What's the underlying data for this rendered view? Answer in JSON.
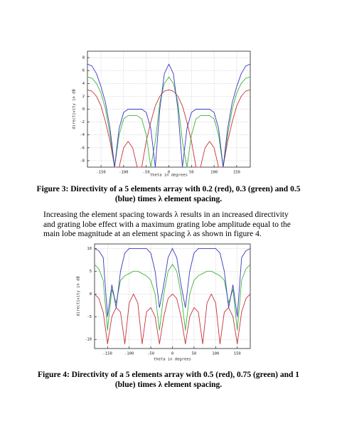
{
  "chart_data": [
    {
      "type": "line",
      "x_label": "theta in degrees",
      "y_label": "directivity in dB",
      "xlim": [
        -180,
        180
      ],
      "xticks": [
        -150,
        -100,
        -50,
        0,
        50,
        100,
        150
      ],
      "ylim": [
        -9,
        9
      ],
      "yticks": [
        -8,
        -6,
        -4,
        -2,
        0,
        2,
        4,
        6,
        8
      ],
      "grid": true,
      "x": [
        -180,
        -170,
        -160,
        -150,
        -140,
        -130,
        -120,
        -110,
        -100,
        -90,
        -80,
        -70,
        -60,
        -50,
        -40,
        -30,
        -20,
        -10,
        0,
        10,
        20,
        30,
        40,
        50,
        60,
        70,
        80,
        90,
        100,
        110,
        120,
        130,
        140,
        150,
        160,
        170,
        180
      ],
      "series": [
        {
          "color": "#c8303c",
          "values": [
            3,
            2.8,
            2,
            0.5,
            -2,
            -5,
            -9,
            -9,
            -6,
            -5,
            -6,
            -9,
            -9,
            -5,
            -2,
            0.5,
            2,
            2.8,
            3,
            2.8,
            2,
            0.5,
            -2,
            -5,
            -9,
            -9,
            -6,
            -5,
            -6,
            -9,
            -9,
            -5,
            -2,
            0.5,
            2,
            2.8,
            3
          ]
        },
        {
          "color": "#3cb43c",
          "values": [
            5,
            4.8,
            4,
            2.5,
            0,
            -4,
            -9,
            -4,
            -1.5,
            -1,
            -1,
            -1,
            -1.5,
            -4,
            -9,
            -5,
            1,
            4,
            5,
            4,
            1,
            -5,
            -9,
            -4,
            -1.5,
            -1,
            -1,
            -1,
            -1.5,
            -4,
            -9,
            -4,
            0,
            2.5,
            4,
            4.8,
            5
          ]
        },
        {
          "color": "#3838c0",
          "values": [
            7,
            6.7,
            5.5,
            3.5,
            1,
            -3,
            -9,
            -3,
            -0.5,
            0,
            0,
            0,
            0,
            -0.5,
            -3,
            -9,
            0,
            5.5,
            7,
            5.5,
            0,
            -9,
            -3,
            -0.5,
            0,
            0,
            0,
            0,
            -0.5,
            -3,
            -9,
            -3,
            1,
            3.5,
            5.5,
            6.7,
            7
          ]
        }
      ]
    },
    {
      "type": "line",
      "x_label": "theta in degrees",
      "y_label": "directivity in dB",
      "xlim": [
        -180,
        180
      ],
      "xticks": [
        -150,
        -100,
        -50,
        0,
        50,
        100,
        150
      ],
      "ylim": [
        -12,
        11
      ],
      "yticks": [
        -10,
        -5,
        0,
        5,
        10
      ],
      "grid": true,
      "x": [
        -180,
        -170,
        -160,
        -150,
        -140,
        -130,
        -120,
        -110,
        -100,
        -90,
        -80,
        -70,
        -60,
        -50,
        -40,
        -30,
        -20,
        -10,
        0,
        10,
        20,
        30,
        40,
        50,
        60,
        70,
        80,
        90,
        100,
        110,
        120,
        130,
        140,
        150,
        160,
        170,
        180
      ],
      "series": [
        {
          "color": "#c8303c",
          "values": [
            0,
            -1,
            -4,
            -11,
            -5,
            -3,
            -4,
            -11,
            -2,
            0,
            -2,
            -11,
            -4,
            -3,
            -5,
            -11,
            -5,
            -1,
            0,
            -1,
            -5,
            -11,
            -5,
            -3,
            -4,
            -11,
            -2,
            0,
            -2,
            -11,
            -4,
            -3,
            -5,
            -11,
            -4,
            -1,
            0
          ]
        },
        {
          "color": "#3cb43c",
          "values": [
            6.5,
            5.5,
            3,
            -8,
            1,
            -2,
            3,
            4,
            4.5,
            5,
            5,
            4.5,
            4,
            3,
            0,
            -8,
            0,
            5,
            6.5,
            5,
            0,
            -8,
            0,
            3,
            4,
            4.5,
            5,
            5,
            4.5,
            4,
            3,
            -2,
            1,
            -8,
            3,
            5.5,
            6.5
          ]
        },
        {
          "color": "#3838c0",
          "values": [
            10,
            9.5,
            8,
            -5,
            2,
            -3,
            5,
            9,
            10,
            10,
            10,
            10,
            10,
            9,
            5,
            -3,
            2,
            8,
            10,
            8,
            2,
            -3,
            5,
            9,
            10,
            10,
            10,
            10,
            10,
            9,
            5,
            -3,
            2,
            -5,
            8,
            9.5,
            10
          ]
        }
      ]
    }
  ],
  "figure3_caption": "Figure 3: Directivity of a 5 elements array with 0.2 (red), 0.3 (green) and 0.5 (blue) times λ element spacing.",
  "paragraph": "Increasing the element spacing towards λ results in an increased directivity and grating lobe effect with a maximum grating lobe amplitude equal to the main lobe magnitude at an element spacing λ as shown in figure 4.",
  "figure4_caption": "Figure 4: Directivity of a 5 elements array with 0.5 (red), 0.75 (green) and 1 (blue) times λ element spacing."
}
